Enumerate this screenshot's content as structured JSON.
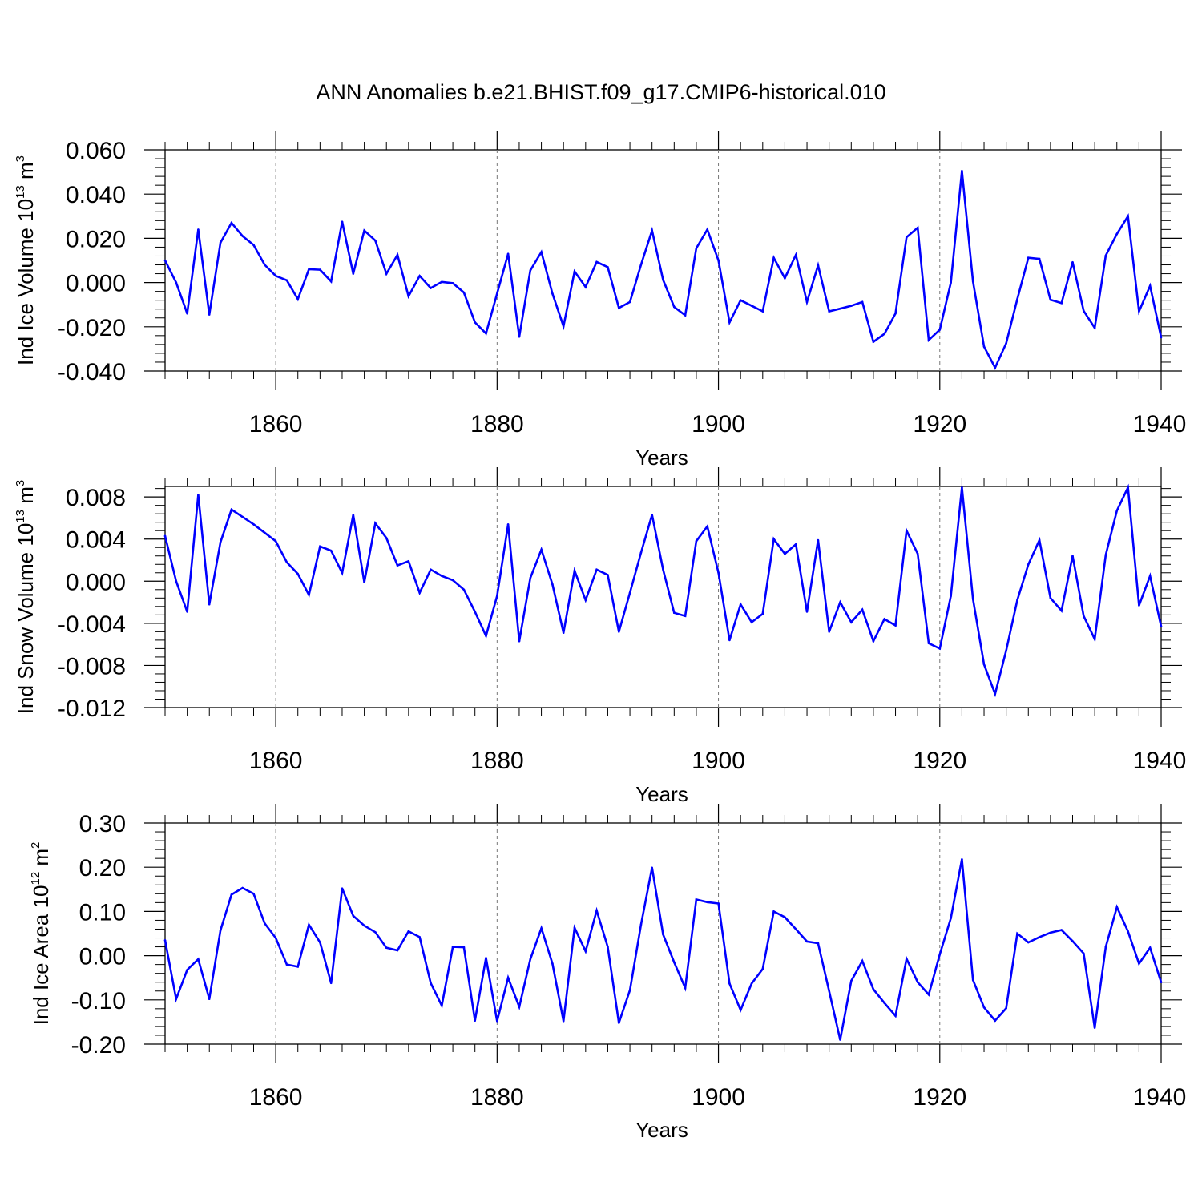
{
  "figure_title": "ANN Anomalies b.e21.BHIST.f09_g17.CMIP6-historical.010",
  "line_color": "#0000ff",
  "chart_data": [
    {
      "type": "line",
      "title": "",
      "ylabel": {
        "prefix": "Ind Ice Volume 10",
        "exponent": "13",
        "unit": " m",
        "unit_exponent": "3"
      },
      "xlabel": "Years",
      "xlim": [
        1850,
        1940
      ],
      "ylim": [
        -0.04,
        0.06
      ],
      "yticks": [
        -0.04,
        -0.02,
        0.0,
        0.02,
        0.04,
        0.06
      ],
      "ytick_labels": [
        "-0.040",
        "-0.020",
        "0.000",
        "0.020",
        "0.040",
        "0.060"
      ],
      "xticks": [
        1860,
        1880,
        1900,
        1920,
        1940
      ],
      "xtick_labels": [
        "1860",
        "1880",
        "1900",
        "1920",
        "1940"
      ],
      "x": [
        1850,
        1851,
        1852,
        1853,
        1854,
        1855,
        1856,
        1857,
        1858,
        1859,
        1860,
        1861,
        1862,
        1863,
        1864,
        1865,
        1866,
        1867,
        1868,
        1869,
        1870,
        1871,
        1872,
        1873,
        1874,
        1875,
        1876,
        1877,
        1878,
        1879,
        1880,
        1881,
        1882,
        1883,
        1884,
        1885,
        1886,
        1887,
        1888,
        1889,
        1890,
        1891,
        1892,
        1893,
        1894,
        1895,
        1896,
        1897,
        1898,
        1899,
        1900,
        1901,
        1902,
        1903,
        1904,
        1905,
        1906,
        1907,
        1908,
        1909,
        1910,
        1911,
        1912,
        1913,
        1914,
        1915,
        1916,
        1917,
        1918,
        1919,
        1920,
        1921,
        1922,
        1923,
        1924,
        1925,
        1926,
        1927,
        1928,
        1929,
        1930,
        1931,
        1932,
        1933,
        1934,
        1935,
        1936,
        1937,
        1938,
        1939,
        1940
      ],
      "series": [
        {
          "name": "Ind Ice Volume",
          "values": [
            0.01,
            0.0,
            -0.014,
            0.024,
            -0.0145,
            0.018,
            0.027,
            0.021,
            0.017,
            0.008,
            0.003,
            0.001,
            -0.0075,
            0.006,
            0.0058,
            0.0005,
            0.0275,
            0.004,
            0.0235,
            0.019,
            0.004,
            0.0125,
            -0.0062,
            0.003,
            -0.0025,
            0.0003,
            -0.0003,
            -0.0045,
            -0.018,
            -0.023,
            -0.005,
            0.013,
            -0.0245,
            0.0055,
            0.0138,
            -0.005,
            -0.0198,
            0.005,
            -0.002,
            0.0093,
            0.007,
            -0.0115,
            -0.0088,
            0.008,
            0.0235,
            0.0012,
            -0.011,
            -0.0148,
            0.0155,
            0.024,
            0.01,
            -0.018,
            -0.008,
            -0.0105,
            -0.013,
            0.0112,
            0.002,
            0.0125,
            -0.0088,
            0.0078,
            -0.013,
            -0.0118,
            -0.0105,
            -0.0088,
            -0.0268,
            -0.0232,
            -0.014,
            0.0205,
            0.0248,
            -0.026,
            -0.0213,
            0.0,
            0.0505,
            0.0005,
            -0.029,
            -0.0385,
            -0.0275,
            -0.0075,
            0.0112,
            0.0107,
            -0.0078,
            -0.0093,
            0.0092,
            -0.0128,
            -0.0205,
            0.0122,
            0.022,
            0.03,
            -0.013,
            -0.0015,
            -0.0248
          ]
        }
      ]
    },
    {
      "type": "line",
      "title": "",
      "ylabel": {
        "prefix": "Ind Snow Volume 10",
        "exponent": "13",
        "unit": " m",
        "unit_exponent": "3"
      },
      "xlabel": "Years",
      "xlim": [
        1850,
        1940
      ],
      "ylim": [
        -0.012,
        0.009
      ],
      "yticks": [
        -0.012,
        -0.008,
        -0.004,
        0.0,
        0.004,
        0.008
      ],
      "ytick_labels": [
        "-0.012",
        "-0.008",
        "-0.004",
        "0.000",
        "0.004",
        "0.008"
      ],
      "xticks": [
        1860,
        1880,
        1900,
        1920,
        1940
      ],
      "xtick_labels": [
        "1860",
        "1880",
        "1900",
        "1920",
        "1940"
      ],
      "x": [
        1850,
        1851,
        1852,
        1853,
        1854,
        1855,
        1856,
        1857,
        1858,
        1859,
        1860,
        1861,
        1862,
        1863,
        1864,
        1865,
        1866,
        1867,
        1868,
        1869,
        1870,
        1871,
        1872,
        1873,
        1874,
        1875,
        1876,
        1877,
        1878,
        1879,
        1880,
        1881,
        1882,
        1883,
        1884,
        1885,
        1886,
        1887,
        1888,
        1889,
        1890,
        1891,
        1892,
        1893,
        1894,
        1895,
        1896,
        1897,
        1898,
        1899,
        1900,
        1901,
        1902,
        1903,
        1904,
        1905,
        1906,
        1907,
        1908,
        1909,
        1910,
        1911,
        1912,
        1913,
        1914,
        1915,
        1916,
        1917,
        1918,
        1919,
        1920,
        1921,
        1922,
        1923,
        1924,
        1925,
        1926,
        1927,
        1928,
        1929,
        1930,
        1931,
        1932,
        1933,
        1934,
        1935,
        1936,
        1937,
        1938,
        1939,
        1940
      ],
      "series": [
        {
          "name": "Ind Snow Volume",
          "values": [
            0.0043,
            0.0,
            -0.0029,
            0.0082,
            -0.0022,
            0.0037,
            0.0068,
            0.0061,
            0.0054,
            0.0046,
            0.0038,
            0.0018,
            0.0007,
            -0.0013,
            0.0033,
            0.0029,
            0.0008,
            0.0063,
            -0.0001,
            0.0055,
            0.0041,
            0.0015,
            0.0019,
            -0.0011,
            0.0011,
            0.0005,
            0.0001,
            -0.0008,
            -0.0029,
            -0.0052,
            -0.0014,
            0.0054,
            -0.0057,
            0.0003,
            0.003,
            -0.0003,
            -0.0049,
            0.001,
            -0.0018,
            0.0011,
            0.0006,
            -0.0048,
            -0.0011,
            0.0027,
            0.0063,
            0.0011,
            -0.003,
            -0.0033,
            0.0038,
            0.0052,
            0.0008,
            -0.0056,
            -0.0022,
            -0.0039,
            -0.0031,
            0.004,
            0.0026,
            0.0035,
            -0.0029,
            0.0039,
            -0.0048,
            -0.002,
            -0.0039,
            -0.0027,
            -0.0057,
            -0.0036,
            -0.0042,
            0.0048,
            0.0026,
            -0.0059,
            -0.0064,
            -0.0014,
            0.0089,
            -0.0017,
            -0.0079,
            -0.0107,
            -0.0066,
            -0.0018,
            0.0016,
            0.0039,
            -0.0016,
            -0.0028,
            0.0024,
            -0.0033,
            -0.0055,
            0.0025,
            0.0067,
            0.0089,
            -0.0023,
            0.0005,
            -0.0043
          ]
        }
      ]
    },
    {
      "type": "line",
      "title": "",
      "ylabel": {
        "prefix": "Ind Ice Area 10",
        "exponent": "12",
        "unit": " m",
        "unit_exponent": "2"
      },
      "xlabel": "Years",
      "xlim": [
        1850,
        1940
      ],
      "ylim": [
        -0.2,
        0.3
      ],
      "yticks": [
        -0.2,
        -0.1,
        0.0,
        0.1,
        0.2,
        0.3
      ],
      "ytick_labels": [
        "-0.20",
        "-0.10",
        "0.00",
        "0.10",
        "0.20",
        "0.30"
      ],
      "xticks": [
        1860,
        1880,
        1900,
        1920,
        1940
      ],
      "xtick_labels": [
        "1860",
        "1880",
        "1900",
        "1920",
        "1940"
      ],
      "x": [
        1850,
        1851,
        1852,
        1853,
        1854,
        1855,
        1856,
        1857,
        1858,
        1859,
        1860,
        1861,
        1862,
        1863,
        1864,
        1865,
        1866,
        1867,
        1868,
        1869,
        1870,
        1871,
        1872,
        1873,
        1874,
        1875,
        1876,
        1877,
        1878,
        1879,
        1880,
        1881,
        1882,
        1883,
        1884,
        1885,
        1886,
        1887,
        1888,
        1889,
        1890,
        1891,
        1892,
        1893,
        1894,
        1895,
        1896,
        1897,
        1898,
        1899,
        1900,
        1901,
        1902,
        1903,
        1904,
        1905,
        1906,
        1907,
        1908,
        1909,
        1910,
        1911,
        1912,
        1913,
        1914,
        1915,
        1916,
        1917,
        1918,
        1919,
        1920,
        1921,
        1922,
        1923,
        1924,
        1925,
        1926,
        1927,
        1928,
        1929,
        1930,
        1931,
        1932,
        1933,
        1934,
        1935,
        1936,
        1937,
        1938,
        1939,
        1940
      ],
      "series": [
        {
          "name": "Ind Ice Area",
          "values": [
            0.035,
            -0.098,
            -0.032,
            -0.008,
            -0.098,
            0.057,
            0.138,
            0.153,
            0.14,
            0.073,
            0.04,
            -0.02,
            -0.025,
            0.07,
            0.03,
            -0.062,
            0.152,
            0.09,
            0.068,
            0.053,
            0.018,
            0.012,
            0.055,
            0.042,
            -0.062,
            -0.113,
            0.02,
            0.019,
            -0.147,
            -0.005,
            -0.148,
            -0.05,
            -0.116,
            -0.008,
            0.062,
            -0.018,
            -0.148,
            0.063,
            0.01,
            0.102,
            0.02,
            -0.152,
            -0.078,
            0.07,
            0.199,
            0.048,
            -0.015,
            -0.073,
            0.127,
            0.121,
            0.118,
            -0.063,
            -0.123,
            -0.063,
            -0.03,
            0.1,
            0.087,
            0.06,
            0.032,
            0.028,
            -0.08,
            -0.19,
            -0.057,
            -0.012,
            -0.076,
            -0.107,
            -0.136,
            -0.007,
            -0.06,
            -0.088,
            0.003,
            0.085,
            0.218,
            -0.055,
            -0.117,
            -0.147,
            -0.119,
            0.05,
            0.03,
            0.042,
            0.052,
            0.058,
            0.033,
            0.005,
            -0.163,
            0.02,
            0.11,
            0.055,
            -0.018,
            0.018,
            -0.06
          ]
        }
      ]
    }
  ]
}
